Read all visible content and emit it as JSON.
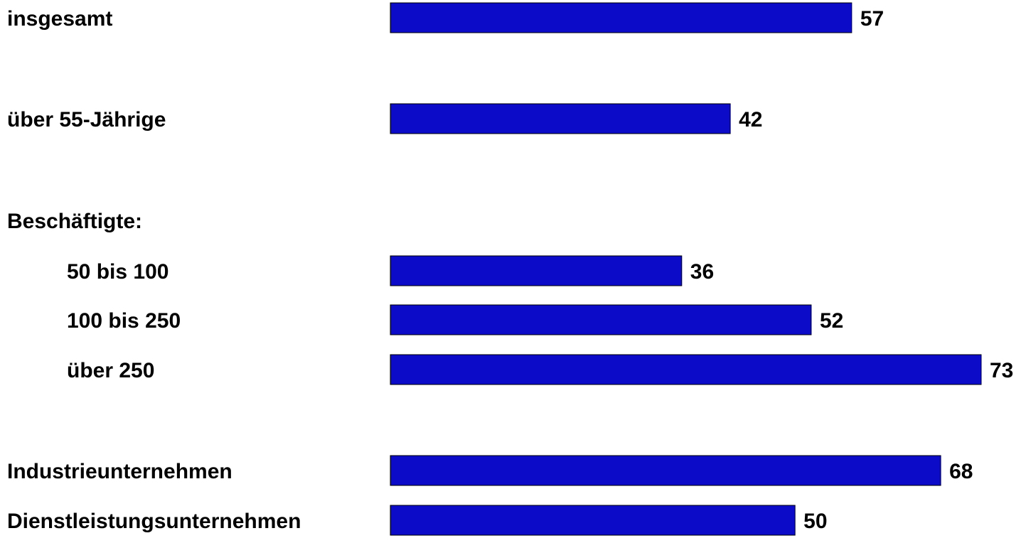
{
  "chart_data": {
    "type": "bar",
    "orientation": "horizontal",
    "title": "",
    "xlabel": "",
    "ylabel": "",
    "grid": false,
    "legend": "none",
    "bar_color": "#0c0cc8",
    "bar_border_color": "#000000",
    "categories": [
      "insgesamt",
      "über 55-Jährige",
      "Beschäftigte:",
      "50 bis 100",
      "100 bis 250",
      "über 250",
      "Industrieunternehmen",
      "Dienstleistungsunternehmen"
    ],
    "values": [
      57,
      42,
      null,
      36,
      52,
      73,
      68,
      50
    ],
    "data_labels": [
      "57",
      "42",
      "",
      "36",
      "52",
      "73",
      "68",
      "50"
    ],
    "xlim": [
      0,
      73
    ]
  }
}
